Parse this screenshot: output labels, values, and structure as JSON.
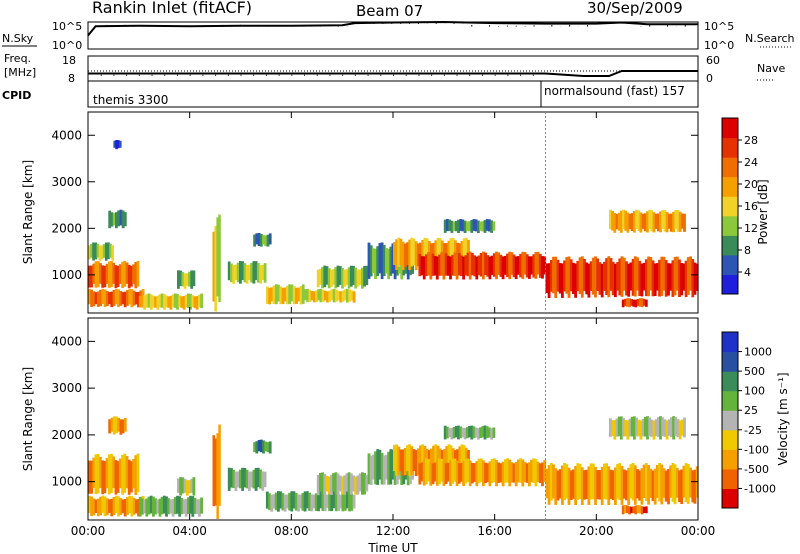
{
  "header": {
    "title": "Rankin Inlet (fitACF)",
    "beam": "Beam 07",
    "date": "30/Sep/2009"
  },
  "params": {
    "nsky_label": "N.Sky",
    "nsearch_label": "N.Search",
    "freq_label": "Freq.",
    "freq_unit": "[MHz]",
    "nave_label": "Nave",
    "cpid_label": "CPID",
    "nsky_ticks": [
      "10^5",
      "10^0"
    ],
    "nsearch_ticks": [
      "10^5",
      "10^0"
    ],
    "freq_ticks": [
      "18",
      "8"
    ],
    "nave_ticks": [
      "60",
      "0"
    ],
    "cpid_segments": [
      {
        "text": "themis 3300",
        "start_hour": 0,
        "end_hour": 18.0
      },
      {
        "text": "normalsound (fast) 157",
        "start_hour": 18.0,
        "end_hour": 24
      }
    ]
  },
  "power_panel": {
    "ylabel": "Slant Range [km]",
    "yticks": [
      "1000",
      "2000",
      "3000",
      "4000"
    ],
    "colorbar_label": "Power [dB]",
    "colorbar_ticks": [
      "4",
      "8",
      "12",
      "16",
      "20",
      "24",
      "28"
    ],
    "colors": [
      "#1e1edc",
      "#2d56b4",
      "#3a8a5a",
      "#8cc83c",
      "#f0d228",
      "#f5a000",
      "#f06e00",
      "#e63200",
      "#dc0000"
    ]
  },
  "velocity_panel": {
    "ylabel": "Slant Range [km]",
    "yticks": [
      "1000",
      "2000",
      "3000",
      "4000"
    ],
    "colorbar_label": "Velocity [m s⁻¹]",
    "colorbar_ticks": [
      "1000",
      "500",
      "100",
      "25",
      "-25",
      "-100",
      "-500",
      "-1000"
    ],
    "colors": [
      "#1e32c8",
      "#2850a0",
      "#3c8c5a",
      "#64b43c",
      "#b4b4b4",
      "#f0c800",
      "#f5a000",
      "#f06400",
      "#dc0000"
    ]
  },
  "x_axis": {
    "label": "Time UT",
    "ticks": [
      "00:00",
      "04:00",
      "08:00",
      "12:00",
      "16:00",
      "20:00",
      "00:00"
    ]
  },
  "chart_data": [
    {
      "type": "line",
      "name": "N.Sky",
      "x_unit": "hours UT",
      "x": [
        0,
        0.3,
        2,
        4,
        6,
        8,
        10,
        10.5,
        12,
        14,
        16,
        18,
        20,
        21,
        22,
        24
      ],
      "y_log10": [
        2.5,
        4.2,
        4.3,
        4.2,
        4.3,
        4.3,
        4.4,
        4.8,
        4.9,
        5.0,
        4.8,
        4.7,
        4.7,
        4.9,
        4.6,
        4.6
      ]
    },
    {
      "type": "line",
      "name": "Freq.",
      "x_unit": "hours UT",
      "x": [
        0,
        18,
        19.5,
        20.5,
        21,
        21.3,
        22,
        24
      ],
      "y": [
        11,
        11,
        10,
        10,
        12,
        12,
        12,
        12
      ],
      "ylim": [
        8,
        18
      ]
    },
    {
      "type": "heatmap",
      "name": "Power",
      "xlabel": "Time UT",
      "ylabel": "Slant Range [km]",
      "xlim": [
        0,
        24
      ],
      "ylim": [
        180,
        4500
      ],
      "clim": [
        0,
        30
      ],
      "colorbar_label": "Power [dB]",
      "regions": [
        {
          "t0": 0.0,
          "t1": 2.0,
          "r0": 700,
          "r1": 1300,
          "value": 24
        },
        {
          "t0": 0.0,
          "t1": 2.2,
          "r0": 300,
          "r1": 700,
          "value": 22
        },
        {
          "t0": 0.0,
          "t1": 1.0,
          "r0": 1300,
          "r1": 1700,
          "value": 10
        },
        {
          "t0": 0.8,
          "t1": 1.5,
          "r0": 2000,
          "r1": 2400,
          "value": 8
        },
        {
          "t0": 1.0,
          "t1": 1.3,
          "r0": 3700,
          "r1": 3900,
          "value": 4
        },
        {
          "t0": 2.0,
          "t1": 4.5,
          "r0": 250,
          "r1": 600,
          "value": 14
        },
        {
          "t0": 3.5,
          "t1": 4.2,
          "r0": 700,
          "r1": 1100,
          "value": 12
        },
        {
          "t0": 4.9,
          "t1": 5.2,
          "r0": 200,
          "r1": 2300,
          "value": 14
        },
        {
          "t0": 5.5,
          "t1": 7.0,
          "r0": 800,
          "r1": 1300,
          "value": 10
        },
        {
          "t0": 6.5,
          "t1": 7.2,
          "r0": 1600,
          "r1": 1900,
          "value": 8
        },
        {
          "t0": 7.0,
          "t1": 8.5,
          "r0": 350,
          "r1": 800,
          "value": 16
        },
        {
          "t0": 8.5,
          "t1": 10.5,
          "r0": 400,
          "r1": 700,
          "value": 14
        },
        {
          "t0": 9.0,
          "t1": 11.0,
          "r0": 700,
          "r1": 1200,
          "value": 10
        },
        {
          "t0": 11.0,
          "t1": 12.8,
          "r0": 900,
          "r1": 1700,
          "value": 8
        },
        {
          "t0": 12.0,
          "t1": 15.0,
          "r0": 1100,
          "r1": 1800,
          "value": 18
        },
        {
          "t0": 13.0,
          "t1": 18.0,
          "r0": 900,
          "r1": 1500,
          "value": 26
        },
        {
          "t0": 14.0,
          "t1": 16.0,
          "r0": 1900,
          "r1": 2200,
          "value": 6
        },
        {
          "t0": 18.0,
          "t1": 24.0,
          "r0": 500,
          "r1": 1400,
          "value": 27
        },
        {
          "t0": 20.5,
          "t1": 23.5,
          "r0": 1900,
          "r1": 2400,
          "value": 18
        },
        {
          "t0": 21.0,
          "t1": 22.0,
          "r0": 300,
          "r1": 500,
          "value": 26
        }
      ]
    },
    {
      "type": "heatmap",
      "name": "Velocity",
      "xlabel": "Time UT",
      "ylabel": "Slant Range [km]",
      "xlim": [
        0,
        24
      ],
      "ylim": [
        180,
        4500
      ],
      "clim": [
        -1000,
        1000
      ],
      "colorbar_label": "Velocity [m s⁻¹]",
      "regions": [
        {
          "t0": 0.0,
          "t1": 2.0,
          "r0": 700,
          "r1": 1600,
          "value": -300
        },
        {
          "t0": 0.0,
          "t1": 2.2,
          "r0": 250,
          "r1": 700,
          "value": -150
        },
        {
          "t0": 0.8,
          "t1": 1.5,
          "r0": 2000,
          "r1": 2400,
          "value": -150
        },
        {
          "t0": 2.0,
          "t1": 4.5,
          "r0": 250,
          "r1": 700,
          "value": 60
        },
        {
          "t0": 3.5,
          "t1": 4.2,
          "r0": 700,
          "r1": 1100,
          "value": 0
        },
        {
          "t0": 4.9,
          "t1": 5.2,
          "r0": 200,
          "r1": 2300,
          "value": -300
        },
        {
          "t0": 5.5,
          "t1": 7.0,
          "r0": 800,
          "r1": 1300,
          "value": 60
        },
        {
          "t0": 6.5,
          "t1": 7.2,
          "r0": 1600,
          "r1": 1900,
          "value": 200
        },
        {
          "t0": 7.0,
          "t1": 10.5,
          "r0": 350,
          "r1": 800,
          "value": 60
        },
        {
          "t0": 9.0,
          "t1": 11.0,
          "r0": 700,
          "r1": 1200,
          "value": 0
        },
        {
          "t0": 11.0,
          "t1": 12.8,
          "r0": 900,
          "r1": 1700,
          "value": 60
        },
        {
          "t0": 12.0,
          "t1": 15.0,
          "r0": 1100,
          "r1": 1800,
          "value": -250
        },
        {
          "t0": 13.0,
          "t1": 18.0,
          "r0": 900,
          "r1": 1500,
          "value": -300
        },
        {
          "t0": 14.0,
          "t1": 16.0,
          "r0": 1900,
          "r1": 2200,
          "value": 60
        },
        {
          "t0": 18.0,
          "t1": 24.0,
          "r0": 500,
          "r1": 1400,
          "value": -400
        },
        {
          "t0": 20.5,
          "t1": 23.5,
          "r0": 1900,
          "r1": 2400,
          "value": 0
        },
        {
          "t0": 21.0,
          "t1": 22.0,
          "r0": 300,
          "r1": 500,
          "value": -600
        }
      ]
    }
  ]
}
